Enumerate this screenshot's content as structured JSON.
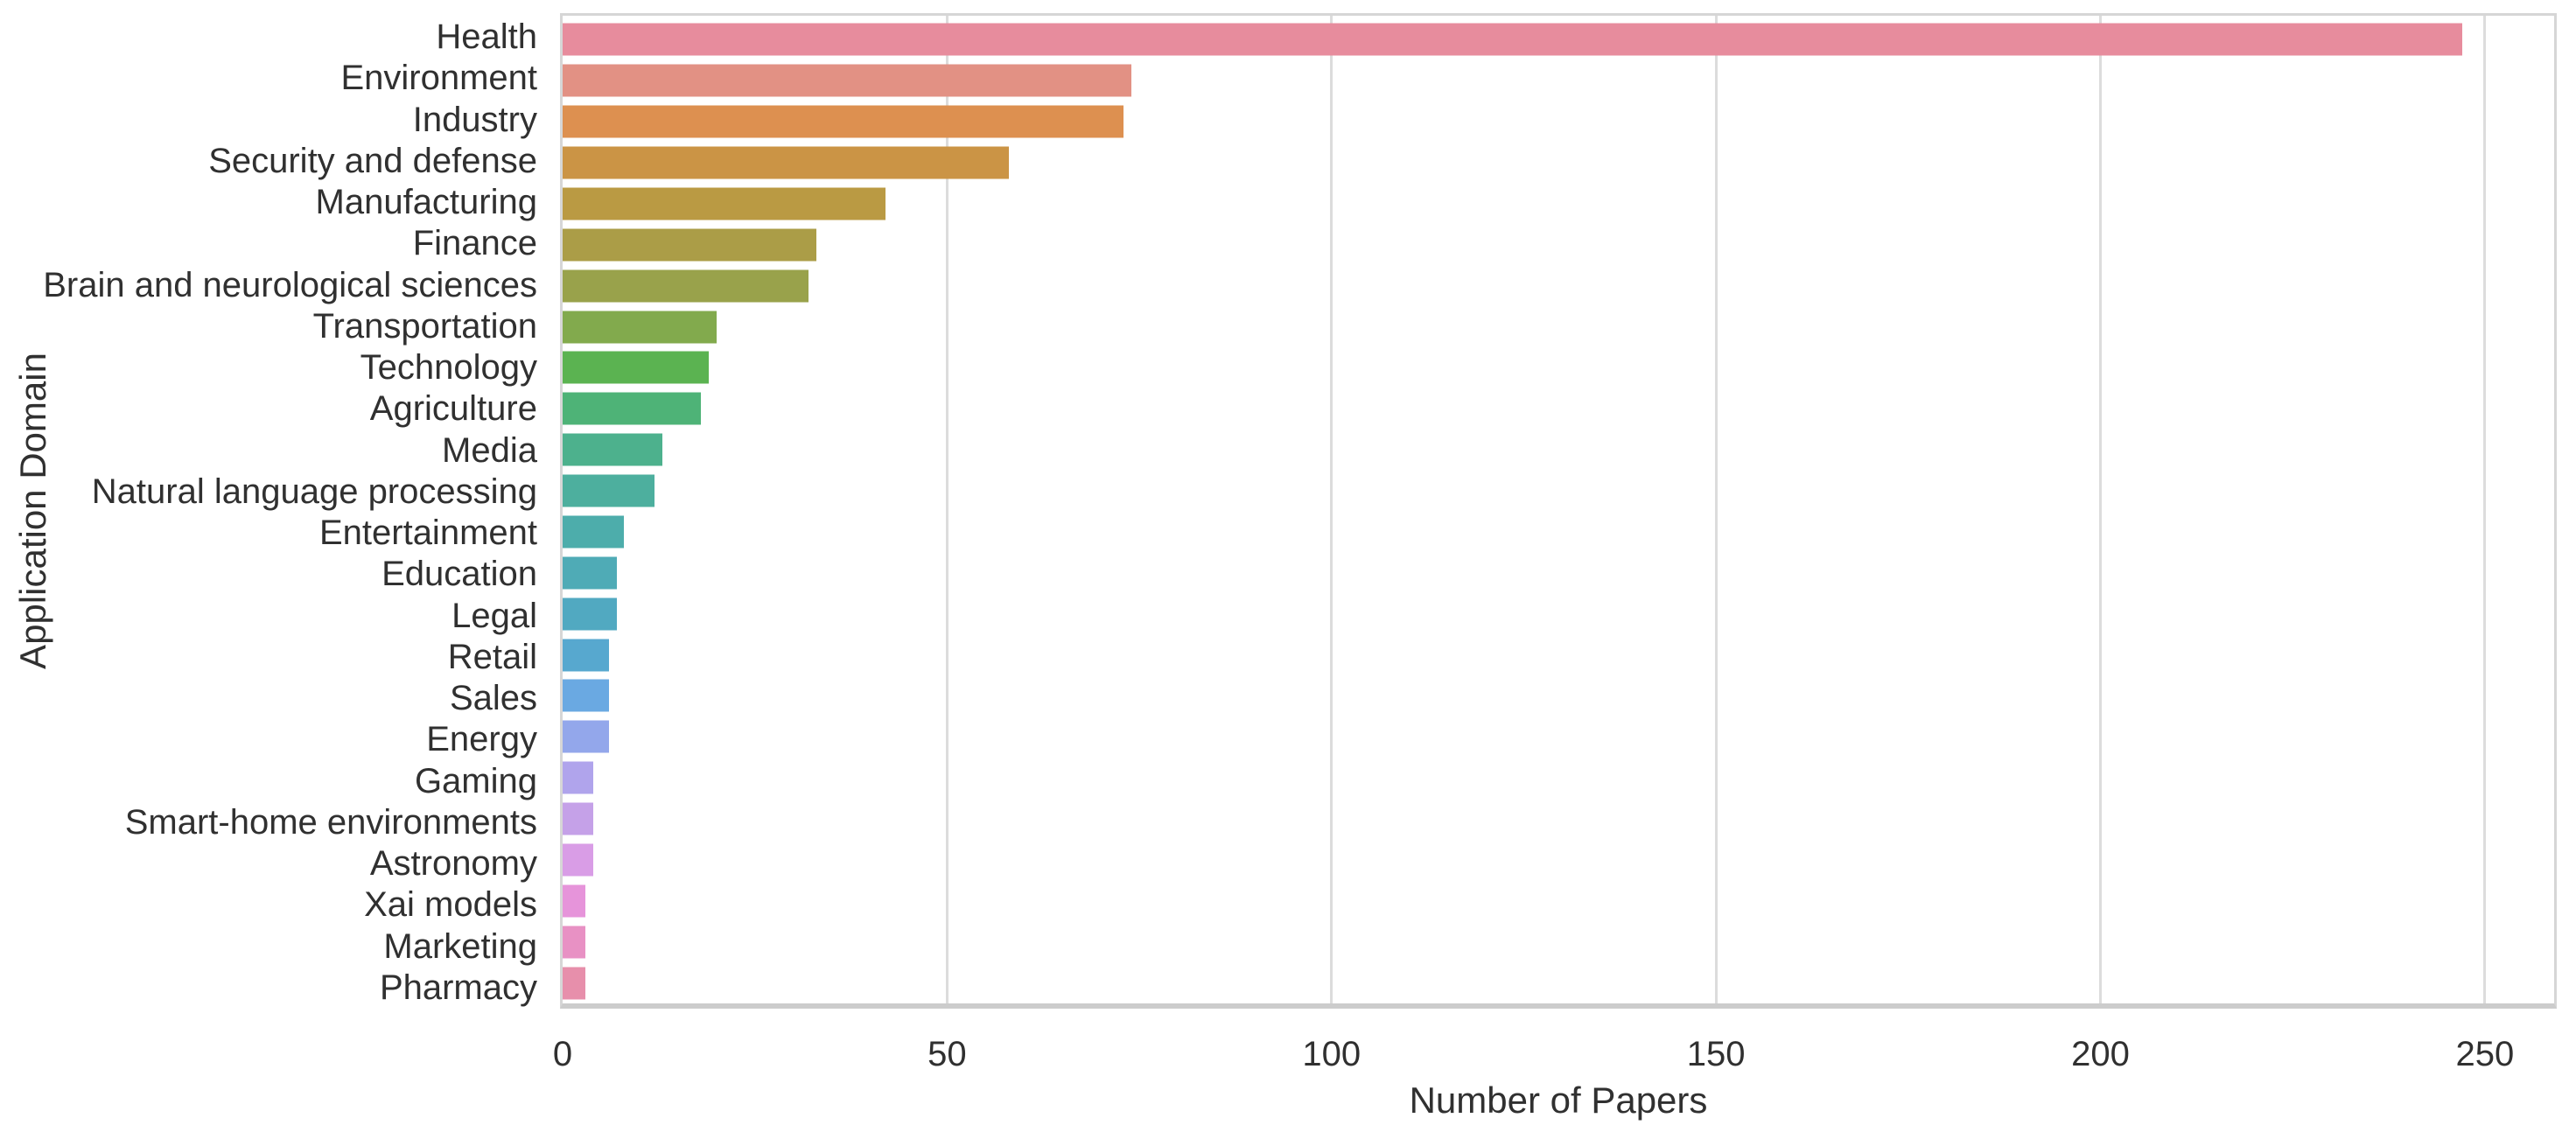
{
  "colors": {
    "background": "#ffffff",
    "grid": "#dcdcdc",
    "spine": "#d6d6d6",
    "axis_line": "#cccccc",
    "text": "#303030"
  },
  "chart_data": {
    "type": "bar",
    "orientation": "horizontal",
    "title": "",
    "xlabel": "Number of Papers",
    "ylabel": "Application Domain",
    "xlim": [
      0,
      259
    ],
    "xticks": [
      0,
      50,
      100,
      150,
      200,
      250
    ],
    "grid": true,
    "legend": false,
    "categories": [
      "Health",
      "Environment",
      "Industry",
      "Security and defense",
      "Manufacturing",
      "Finance",
      "Brain and neurological sciences",
      "Transportation",
      "Technology",
      "Agriculture",
      "Media",
      "Natural language processing",
      "Entertainment",
      "Education",
      "Legal",
      "Retail",
      "Sales",
      "Energy",
      "Gaming",
      "Smart-home environments",
      "Astronomy",
      "Xai models",
      "Marketing",
      "Pharmacy"
    ],
    "values": [
      247,
      74,
      73,
      58,
      42,
      33,
      32,
      20,
      19,
      18,
      13,
      12,
      8,
      7,
      7,
      6,
      6,
      6,
      4,
      4,
      4,
      3,
      3,
      3
    ],
    "bar_colors": [
      "#e78c9d",
      "#e29184",
      "#dd9050",
      "#cb9445",
      "#ba9a43",
      "#ab9d47",
      "#99a24b",
      "#82aa4d",
      "#5bb351",
      "#4eb377",
      "#4db18d",
      "#4daf9e",
      "#4dadab",
      "#4fabb6",
      "#51a9c1",
      "#57a8cf",
      "#6aa9e2",
      "#93a7eb",
      "#b0a4ec",
      "#c5a1e8",
      "#d99de6",
      "#e694da",
      "#e891c4",
      "#e78fab"
    ]
  }
}
